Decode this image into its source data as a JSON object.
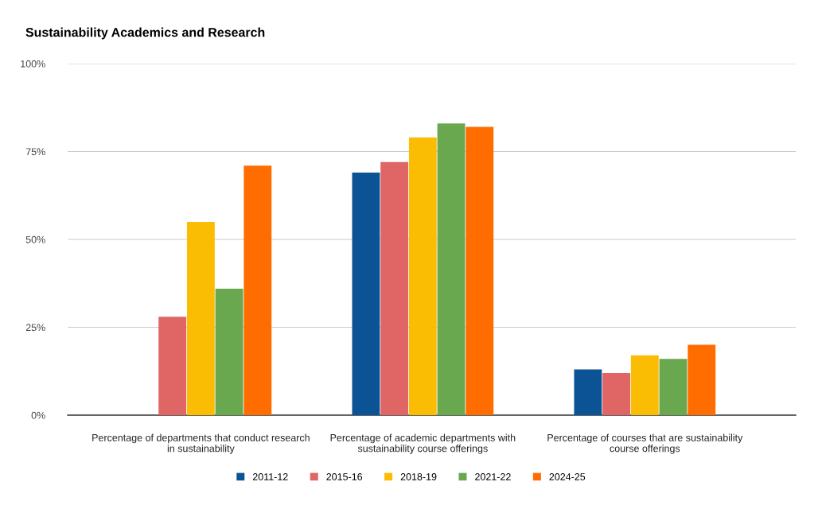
{
  "chart_data": {
    "type": "bar",
    "title": "Sustainability Academics and Research",
    "categories": [
      "Percentage of departments that conduct research\nin sustainability",
      "Percentage of academic departments with\nsustainability course offerings",
      "Percentage of courses that are sustainability\ncourse offerings"
    ],
    "series": [
      {
        "name": "2011-12",
        "color": "#0b5394",
        "values": [
          null,
          69,
          13
        ]
      },
      {
        "name": "2015-16",
        "color": "#e06666",
        "values": [
          28,
          72,
          12
        ]
      },
      {
        "name": "2018-19",
        "color": "#fbbc04",
        "values": [
          55,
          79,
          17
        ]
      },
      {
        "name": "2021-22",
        "color": "#6aa84f",
        "values": [
          36,
          83,
          16
        ]
      },
      {
        "name": "2024-25",
        "color": "#ff6d01",
        "values": [
          71,
          82,
          20
        ]
      }
    ],
    "ylim": [
      0,
      100
    ],
    "yticks": [
      {
        "value": 0,
        "label": "0%"
      },
      {
        "value": 25,
        "label": "25%"
      },
      {
        "value": 50,
        "label": "50%"
      },
      {
        "value": 75,
        "label": "75%"
      },
      {
        "value": 100,
        "label": "100%"
      }
    ],
    "grid": "y",
    "legend": "bottom"
  }
}
